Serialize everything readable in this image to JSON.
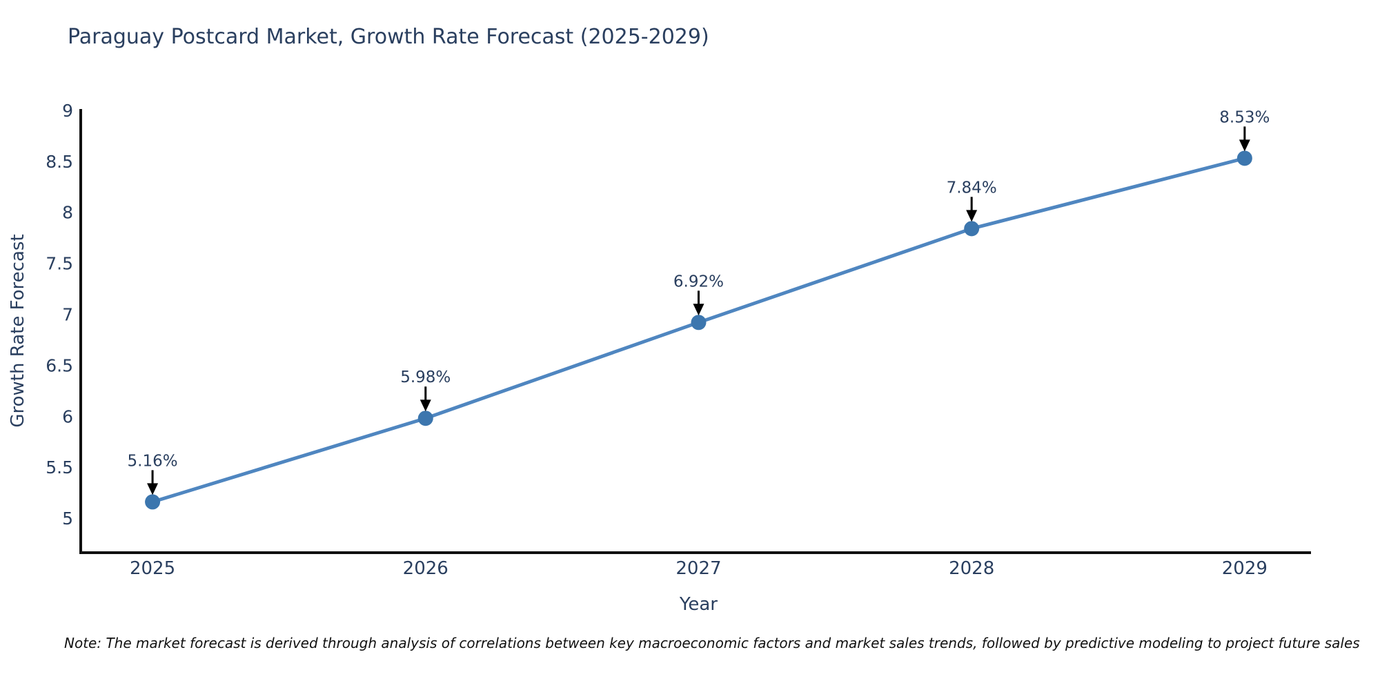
{
  "header": {
    "title": "Paraguay Postcard Market, Growth Rate Forecast (2025-2029)"
  },
  "chart_data": {
    "type": "line",
    "title": "Paraguay Postcard Market, Growth Rate Forecast (2025-2029)",
    "x": [
      2025,
      2026,
      2027,
      2028,
      2029
    ],
    "values": [
      5.16,
      5.98,
      6.92,
      7.84,
      8.53
    ],
    "point_labels": [
      "5.16%",
      "5.98%",
      "6.92%",
      "7.84%",
      "8.53%"
    ],
    "x_tick_labels": [
      "2025",
      "2026",
      "2027",
      "2028",
      "2029"
    ],
    "ytick_values": [
      5,
      5.5,
      6,
      6.5,
      7,
      7.5,
      8,
      8.5,
      9
    ],
    "ytick_labels": [
      "5",
      "5.5",
      "6",
      "6.5",
      "7",
      "7.5",
      "8",
      "8.5",
      "9"
    ],
    "xlabel": "Year",
    "ylabel": "Growth Rate Forecast",
    "ylim": [
      4.662,
      9.013
    ],
    "xlim": [
      2024.737,
      2029.243
    ],
    "grid": false,
    "legend": "none",
    "colors": {
      "line": "#4f86c0",
      "marker": "#3c76ae",
      "text": "#2a3f5f",
      "axis": "#111111",
      "arrow": "#000000",
      "note": "#111111"
    }
  },
  "footnote": {
    "text": "Note: The market forecast is derived through analysis of correlations between key macroeconomic factors and market sales trends, followed by predictive modeling to project future sales"
  }
}
